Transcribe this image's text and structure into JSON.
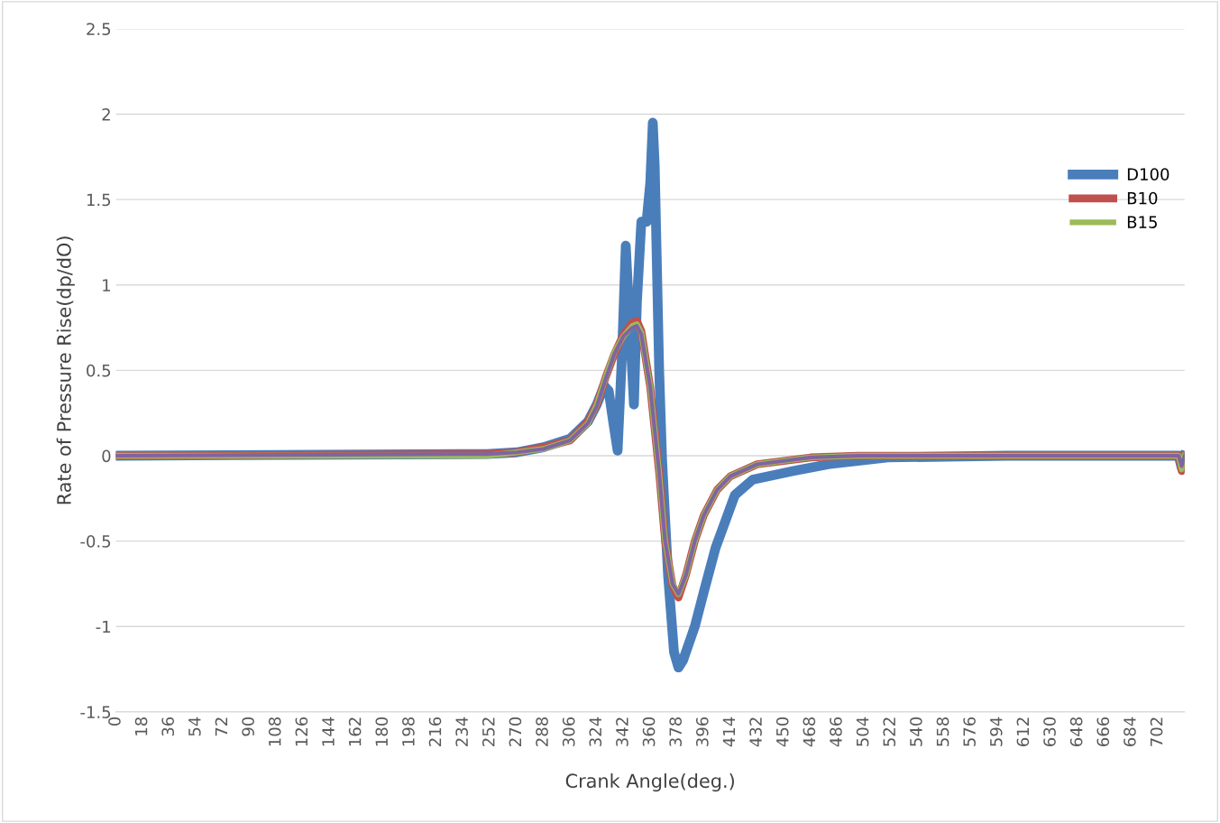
{
  "chart_data": {
    "type": "line",
    "xlabel": "Crank Angle(deg.)",
    "ylabel": "Rate of Pressure Rise(dp/dO)",
    "xlim": [
      0,
      720
    ],
    "xticks": [
      0,
      18,
      36,
      54,
      72,
      90,
      108,
      126,
      144,
      162,
      180,
      198,
      216,
      234,
      252,
      270,
      288,
      306,
      324,
      342,
      360,
      378,
      396,
      414,
      432,
      450,
      468,
      486,
      504,
      522,
      540,
      558,
      576,
      594,
      612,
      630,
      648,
      666,
      684,
      702
    ],
    "ylim": [
      -1.5,
      2.5
    ],
    "yticks": [
      -1.5,
      -1,
      -0.5,
      0,
      0.5,
      1,
      1.5,
      2,
      2.5
    ],
    "grid": "y",
    "legend": "right",
    "marker": "none",
    "line_style": "solid",
    "series": [
      {
        "name": "D100",
        "color": "#4a7ebb",
        "x": [
          0,
          250,
          270,
          288,
          306,
          318,
          324,
          329,
          332,
          335,
          338,
          341,
          343.5,
          346,
          349,
          351,
          354,
          357.5,
          360,
          361.7,
          363,
          366,
          368,
          372,
          376,
          379,
          382,
          386,
          390,
          396,
          404,
          417,
          429,
          456,
          480,
          520,
          600,
          716,
          718,
          720
        ],
        "values": [
          0,
          0.01,
          0.02,
          0.05,
          0.1,
          0.2,
          0.3,
          0.41,
          0.38,
          0.2,
          0.03,
          0.6,
          1.23,
          0.8,
          0.3,
          0.9,
          1.37,
          1.37,
          1.6,
          1.95,
          1.7,
          0.5,
          -0.03,
          -0.7,
          -1.15,
          -1.24,
          -1.2,
          -1.1,
          -1.0,
          -0.8,
          -0.54,
          -0.23,
          -0.14,
          -0.09,
          -0.05,
          -0.01,
          0,
          0,
          -0.07,
          0
        ]
      },
      {
        "name": "B10",
        "color": "#c0504d",
        "x": [
          0,
          250,
          270,
          288,
          306,
          318,
          324,
          330,
          336,
          342,
          348,
          351,
          354,
          360,
          366,
          370,
          375,
          379,
          384,
          390,
          396,
          405,
          414,
          432,
          450,
          468,
          500,
          716,
          718,
          720
        ],
        "values": [
          0,
          0.01,
          0.02,
          0.05,
          0.09,
          0.2,
          0.3,
          0.46,
          0.6,
          0.71,
          0.78,
          0.79,
          0.73,
          0.4,
          -0.1,
          -0.5,
          -0.76,
          -0.83,
          -0.7,
          -0.5,
          -0.35,
          -0.2,
          -0.12,
          -0.05,
          -0.03,
          -0.01,
          0,
          0,
          -0.09,
          0
        ]
      },
      {
        "name": "B15",
        "color": "#9bbb59",
        "x": [
          0,
          250,
          270,
          288,
          306,
          318,
          324,
          330,
          336,
          342,
          348,
          351,
          354,
          360,
          366,
          370,
          375,
          379,
          384,
          390,
          396,
          405,
          414,
          432,
          450,
          468,
          500,
          716,
          718,
          720
        ],
        "values": [
          0,
          0,
          0.02,
          0.04,
          0.09,
          0.19,
          0.3,
          0.46,
          0.61,
          0.7,
          0.76,
          0.77,
          0.72,
          0.4,
          -0.1,
          -0.5,
          -0.75,
          -0.81,
          -0.7,
          -0.5,
          -0.35,
          -0.2,
          -0.12,
          -0.05,
          -0.03,
          -0.01,
          0,
          0,
          -0.08,
          0
        ]
      },
      {
        "color": "#8064a2",
        "x": [
          0,
          250,
          270,
          288,
          306,
          318,
          324,
          330,
          336,
          342,
          348,
          351,
          354,
          360,
          366,
          370,
          375,
          379,
          384,
          390,
          396,
          405,
          414,
          432,
          450,
          468,
          500,
          716,
          718,
          720
        ],
        "values": [
          0,
          0.01,
          0.02,
          0.04,
          0.09,
          0.19,
          0.29,
          0.45,
          0.6,
          0.7,
          0.75,
          0.76,
          0.71,
          0.4,
          -0.1,
          -0.5,
          -0.75,
          -0.81,
          -0.7,
          -0.5,
          -0.35,
          -0.2,
          -0.12,
          -0.05,
          -0.03,
          -0.01,
          0,
          0,
          -0.06,
          0
        ]
      }
    ]
  }
}
